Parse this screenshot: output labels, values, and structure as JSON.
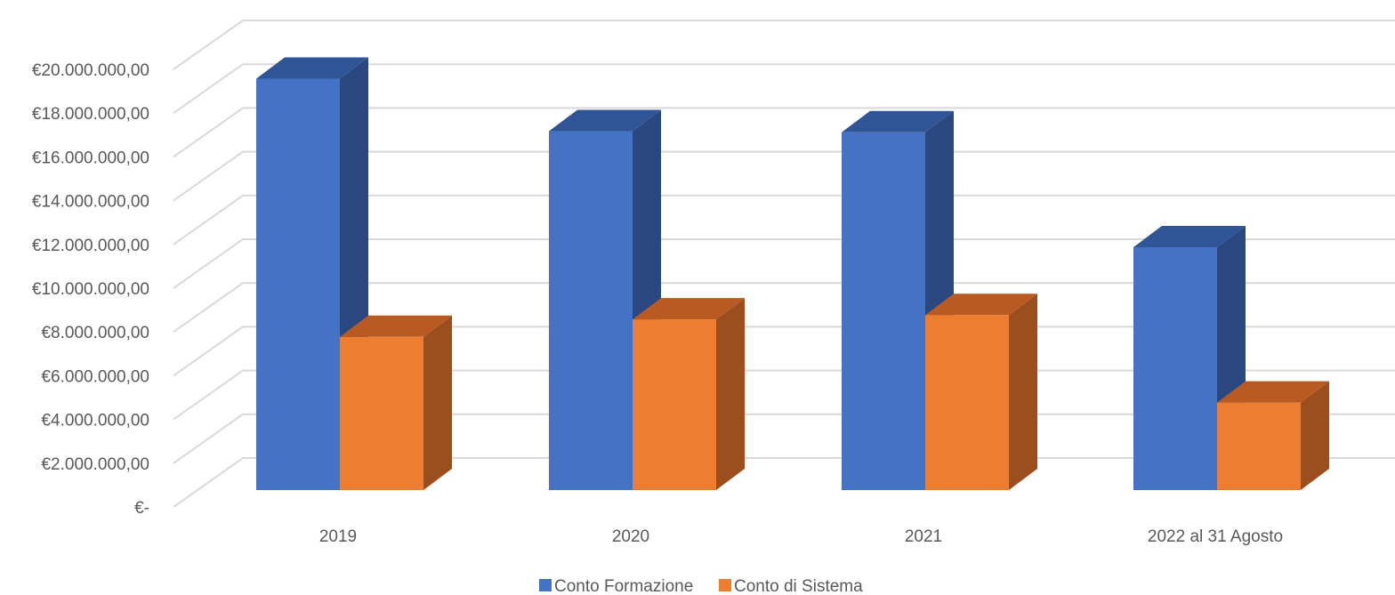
{
  "chart_data": {
    "type": "bar",
    "title": "",
    "xlabel": "",
    "ylabel": "",
    "three_d": true,
    "grid": true,
    "legend_position": "bottom",
    "ylim": [
      0,
      20000000
    ],
    "y_tick_values": [
      0,
      2000000,
      4000000,
      6000000,
      8000000,
      10000000,
      12000000,
      14000000,
      16000000,
      18000000,
      20000000
    ],
    "y_tick_labels": [
      "€-",
      "€2.000.000,00",
      "€4.000.000,00",
      "€6.000.000,00",
      "€8.000.000,00",
      "€10.000.000,00",
      "€12.000.000,00",
      "€14.000.000,00",
      "€16.000.000,00",
      "€18.000.000,00",
      "€20.000.000,00"
    ],
    "categories": [
      "2019",
      "2020",
      "2021",
      "2022 al 31 Agosto"
    ],
    "series": [
      {
        "name": "Conto Formazione",
        "color": "#4472C4",
        "side_color": "#2A4780",
        "top_color": "#2F5597",
        "values": [
          18800000,
          16400000,
          16350000,
          11100000
        ]
      },
      {
        "name": "Conto di Sistema",
        "color": "#ED7D31",
        "side_color": "#9C4F1E",
        "top_color": "#B85A22",
        "values": [
          7000000,
          7800000,
          8000000,
          4000000
        ]
      }
    ]
  }
}
